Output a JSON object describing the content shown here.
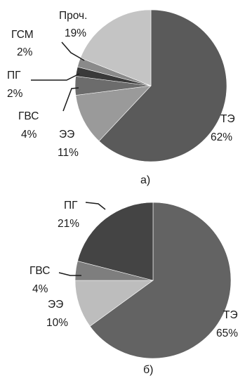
{
  "chart_data": [
    {
      "type": "pie",
      "caption": "а)",
      "slices": [
        {
          "name": "ТЭ",
          "value": 62,
          "label": "62%",
          "color": "#5a5a5a"
        },
        {
          "name": "ЭЭ",
          "value": 11,
          "label": "11%",
          "color": "#9a9a9a"
        },
        {
          "name": "ГВС",
          "value": 4,
          "label": "4%",
          "color": "#6c6c6c"
        },
        {
          "name": "ПГ",
          "value": 2,
          "label": "2%",
          "color": "#3a3a3a"
        },
        {
          "name": "ГСМ",
          "value": 2,
          "label": "2%",
          "color": "#8a8a8a"
        },
        {
          "name": "Проч.",
          "value": 19,
          "label": "19%",
          "color": "#c4c4c4"
        }
      ]
    },
    {
      "type": "pie",
      "caption": "б)",
      "slices": [
        {
          "name": "ТЭ",
          "value": 65,
          "label": "65%",
          "color": "#636363"
        },
        {
          "name": "ЭЭ",
          "value": 10,
          "label": "10%",
          "color": "#bdbdbd"
        },
        {
          "name": "ГВС",
          "value": 4,
          "label": "4%",
          "color": "#7e7e7e"
        },
        {
          "name": "ПГ",
          "value": 21,
          "label": "21%",
          "color": "#444444"
        }
      ]
    }
  ]
}
